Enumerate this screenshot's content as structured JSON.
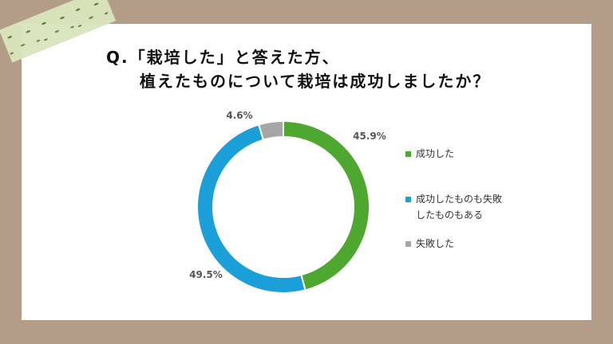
{
  "title_line1": "Q.「栽培した」と答えた方、",
  "title_line2": "植えたものについて栽培は成功しましたか？",
  "chart_data": {
    "type": "pie",
    "donut": true,
    "slices": [
      {
        "label": "成功した",
        "value": 45.9,
        "value_label": "45.9%",
        "color": "#4ea72e"
      },
      {
        "label": "成功したものも失敗したものもある",
        "value": 49.5,
        "value_label": "49.5%",
        "color": "#1b9fd8"
      },
      {
        "label": "失敗した",
        "value": 4.6,
        "value_label": "4.6%",
        "color": "#a6a6a6"
      }
    ],
    "legend_position": "right"
  }
}
